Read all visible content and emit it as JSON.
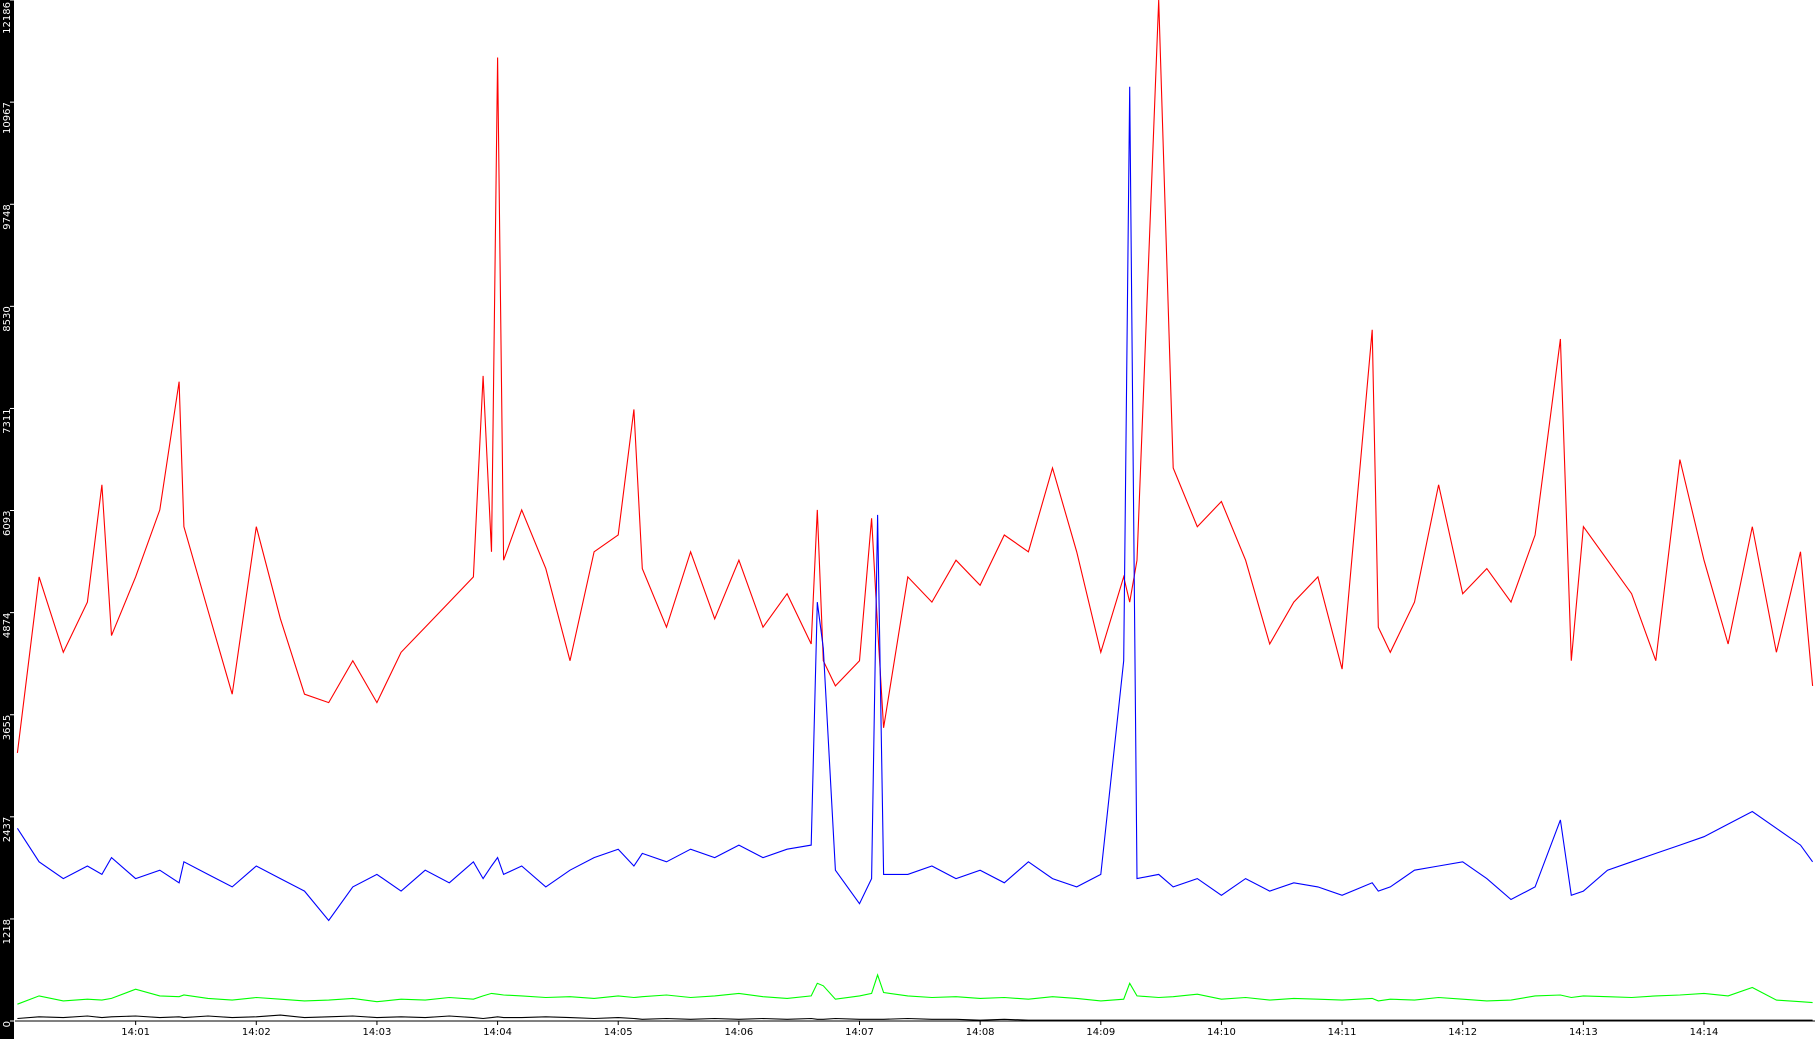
{
  "chart_data": {
    "type": "line",
    "xlim": [
      0,
      14.92
    ],
    "xticks": [
      {
        "value": 1,
        "label": "14:01"
      },
      {
        "value": 2,
        "label": "14:02"
      },
      {
        "value": 3,
        "label": "14:03"
      },
      {
        "value": 4,
        "label": "14:04"
      },
      {
        "value": 5,
        "label": "14:05"
      },
      {
        "value": 6,
        "label": "14:06"
      },
      {
        "value": 7,
        "label": "14:07"
      },
      {
        "value": 8,
        "label": "14:08"
      },
      {
        "value": 9,
        "label": "14:09"
      },
      {
        "value": 10,
        "label": "14:10"
      },
      {
        "value": 11,
        "label": "14:11"
      },
      {
        "value": 12,
        "label": "14:12"
      },
      {
        "value": 13,
        "label": "14:13"
      },
      {
        "value": 14,
        "label": "14:14"
      }
    ],
    "ylim": [
      0,
      12186
    ],
    "yticks": [
      0,
      1218,
      2437,
      3655,
      4874,
      6093,
      7311,
      8530,
      9748,
      10967,
      12186
    ],
    "grid": false,
    "x": [
      0.02,
      0.2,
      0.4,
      0.6,
      0.72,
      0.8,
      1.0,
      1.2,
      1.36,
      1.4,
      1.6,
      1.8,
      2.0,
      2.2,
      2.4,
      2.6,
      2.8,
      3.0,
      3.2,
      3.4,
      3.6,
      3.8,
      3.88,
      3.95,
      4.0,
      4.05,
      4.2,
      4.4,
      4.6,
      4.8,
      5.0,
      5.13,
      5.2,
      5.4,
      5.6,
      5.8,
      6.0,
      6.2,
      6.4,
      6.6,
      6.65,
      6.7,
      6.8,
      7.0,
      7.1,
      7.15,
      7.2,
      7.4,
      7.6,
      7.8,
      8.0,
      8.2,
      8.4,
      8.6,
      8.8,
      9.0,
      9.19,
      9.24,
      9.3,
      9.48,
      9.6,
      9.8,
      10.0,
      10.2,
      10.4,
      10.6,
      10.8,
      11.0,
      11.25,
      11.3,
      11.4,
      11.6,
      11.8,
      12.0,
      12.2,
      12.4,
      12.6,
      12.81,
      12.9,
      13.0,
      13.2,
      13.4,
      13.6,
      13.8,
      14.0,
      14.2,
      14.4,
      14.6,
      14.8,
      14.9
    ],
    "series": [
      {
        "color": "#ff0000",
        "values": [
          3200,
          5300,
          4400,
          5000,
          6400,
          4600,
          5300,
          6100,
          7630,
          5900,
          4900,
          3900,
          5900,
          4800,
          3900,
          3800,
          4300,
          3800,
          4400,
          4700,
          5000,
          5300,
          7700,
          5600,
          11500,
          5500,
          6100,
          5400,
          4300,
          5600,
          5800,
          7300,
          5400,
          4700,
          5600,
          4800,
          5500,
          4700,
          5100,
          4500,
          6100,
          4300,
          4000,
          4300,
          6000,
          4700,
          3500,
          5300,
          5000,
          5500,
          5200,
          5800,
          5600,
          6600,
          5600,
          4400,
          5300,
          5000,
          5500,
          12186,
          6600,
          5900,
          6200,
          5500,
          4500,
          5000,
          5300,
          4200,
          8250,
          4700,
          4400,
          5000,
          6400,
          5100,
          5400,
          5000,
          5800,
          8140,
          4300,
          5900,
          5500,
          5100,
          4300,
          6700,
          5500,
          4500,
          5900,
          4400,
          5600,
          4000
        ]
      },
      {
        "color": "#0000ff",
        "values": [
          2300,
          1900,
          1700,
          1850,
          1750,
          1950,
          1700,
          1800,
          1650,
          1900,
          1750,
          1600,
          1850,
          1700,
          1550,
          1200,
          1600,
          1750,
          1550,
          1800,
          1650,
          1900,
          1700,
          1850,
          1950,
          1750,
          1850,
          1600,
          1800,
          1950,
          2050,
          1850,
          2000,
          1900,
          2050,
          1950,
          2100,
          1950,
          2050,
          2100,
          5000,
          4450,
          1800,
          1400,
          1700,
          6040,
          1750,
          1750,
          1850,
          1700,
          1800,
          1650,
          1900,
          1700,
          1600,
          1750,
          4300,
          11150,
          1700,
          1750,
          1600,
          1700,
          1500,
          1700,
          1550,
          1650,
          1600,
          1500,
          1650,
          1550,
          1600,
          1800,
          1850,
          1900,
          1700,
          1450,
          1600,
          2400,
          1500,
          1550,
          1800,
          1900,
          2000,
          2100,
          2200,
          2350,
          2500,
          2300,
          2100,
          1900
        ]
      },
      {
        "color": "#00ff00",
        "values": [
          200,
          300,
          240,
          260,
          250,
          270,
          380,
          300,
          290,
          310,
          270,
          250,
          280,
          260,
          240,
          250,
          270,
          230,
          260,
          250,
          280,
          260,
          300,
          330,
          320,
          310,
          300,
          280,
          290,
          270,
          300,
          280,
          290,
          310,
          280,
          300,
          330,
          290,
          270,
          300,
          450,
          420,
          260,
          300,
          330,
          550,
          340,
          300,
          280,
          290,
          270,
          280,
          260,
          290,
          270,
          240,
          260,
          450,
          300,
          280,
          290,
          320,
          260,
          280,
          250,
          270,
          260,
          250,
          270,
          240,
          260,
          250,
          280,
          260,
          240,
          250,
          300,
          310,
          280,
          300,
          290,
          280,
          300,
          310,
          330,
          300,
          400,
          250,
          230,
          220
        ]
      },
      {
        "color": "#000000",
        "values": [
          30,
          50,
          40,
          60,
          40,
          50,
          60,
          40,
          50,
          40,
          60,
          40,
          50,
          70,
          40,
          50,
          60,
          40,
          50,
          40,
          60,
          40,
          30,
          40,
          50,
          40,
          40,
          50,
          40,
          30,
          40,
          30,
          20,
          30,
          20,
          30,
          20,
          30,
          20,
          30,
          20,
          20,
          30,
          20,
          20,
          20,
          20,
          30,
          20,
          20,
          10,
          20,
          10,
          10,
          10,
          10,
          10,
          10,
          10,
          10,
          10,
          10,
          10,
          10,
          10,
          10,
          10,
          10,
          10,
          10,
          10,
          10,
          10,
          10,
          10,
          10,
          10,
          10,
          10,
          10,
          10,
          10,
          10,
          10,
          10,
          10,
          10,
          10,
          10,
          10
        ]
      }
    ]
  }
}
